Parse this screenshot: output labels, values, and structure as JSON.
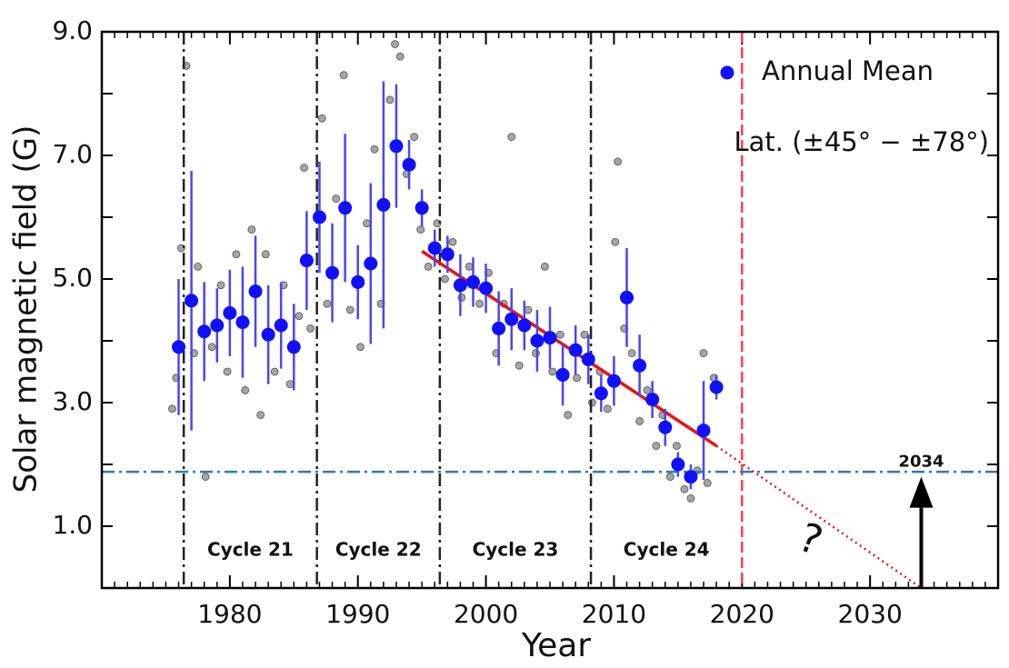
{
  "chart_data": {
    "type": "scatter",
    "xlabel": "Year",
    "ylabel": "Solar magnetic field (G)",
    "xlim": [
      1970,
      2040
    ],
    "ylim": [
      0,
      9
    ],
    "xticks": [
      1980,
      1990,
      2000,
      2010,
      2020,
      2030
    ],
    "yticks": [
      {
        "value": 1,
        "label": "1.0"
      },
      {
        "value": 3,
        "label": "3.0"
      },
      {
        "value": 5,
        "label": "5.0"
      },
      {
        "value": 7,
        "label": "7.0"
      },
      {
        "value": 9,
        "label": "9.0"
      }
    ],
    "yticks_minor": [
      2,
      4,
      6,
      8
    ],
    "xticks_minor_step": 1,
    "legend": "upper right",
    "legend_note": "Lat. (±45° − ±78°)",
    "series": [
      {
        "name": "Annual Mean",
        "color": "#1010ff",
        "error_color": "#4848f0",
        "x": [
          1976,
          1977,
          1978,
          1979,
          1980,
          1981,
          1982,
          1983,
          1984,
          1985,
          1986,
          1987,
          1988,
          1989,
          1990,
          1991,
          1992,
          1993,
          1994,
          1995,
          1996,
          1997,
          1998,
          1999,
          2000,
          2001,
          2002,
          2003,
          2004,
          2005,
          2006,
          2007,
          2008,
          2009,
          2010,
          2011,
          2012,
          2013,
          2014,
          2015,
          2016,
          2017,
          2018
        ],
        "values": [
          3.9,
          4.65,
          4.15,
          4.25,
          4.45,
          4.3,
          4.8,
          4.1,
          4.25,
          3.9,
          5.3,
          6.0,
          5.1,
          6.15,
          4.95,
          5.25,
          6.2,
          7.15,
          6.85,
          6.15,
          5.5,
          5.4,
          4.9,
          4.95,
          4.85,
          4.2,
          4.35,
          4.25,
          4.0,
          4.05,
          3.45,
          3.85,
          3.7,
          3.15,
          3.35,
          4.7,
          3.6,
          3.05,
          2.6,
          2.0,
          1.8,
          2.55,
          3.25
        ],
        "errors": [
          1.1,
          2.1,
          0.8,
          0.6,
          0.7,
          0.9,
          0.9,
          0.8,
          0.7,
          0.7,
          0.8,
          0.9,
          0.8,
          1.2,
          0.6,
          1.3,
          2.0,
          1.0,
          0.4,
          0.3,
          0.3,
          0.3,
          0.5,
          0.4,
          0.4,
          0.6,
          0.5,
          0.4,
          0.5,
          0.5,
          0.5,
          0.4,
          0.4,
          0.3,
          0.4,
          0.8,
          0.5,
          0.3,
          0.3,
          0.2,
          0.2,
          0.8,
          0.2
        ]
      }
    ],
    "samples": {
      "color": "#000000",
      "x": [
        1975.5,
        1975.8,
        1976.2,
        1976.6,
        1977.2,
        1977.5,
        1978.1,
        1978.6,
        1979.3,
        1979.8,
        1980.5,
        1981.2,
        1981.7,
        1982.4,
        1982.8,
        1983.5,
        1984.2,
        1984.7,
        1985.4,
        1985.8,
        1986.3,
        1987.2,
        1987.6,
        1988.3,
        1988.9,
        1989.4,
        1990.2,
        1990.7,
        1991.3,
        1991.8,
        1992.5,
        1992.9,
        1993.3,
        1993.8,
        1994.4,
        1994.9,
        1995.5,
        1996.2,
        1996.8,
        1997.4,
        1998.1,
        1998.7,
        1999.5,
        2000.2,
        2000.8,
        2001.4,
        2002.0,
        2002.6,
        2003.3,
        2003.9,
        2004.6,
        2005.2,
        2005.8,
        2006.4,
        2007.1,
        2007.7,
        2008.3,
        2008.9,
        2009.5,
        2010.1,
        2010.3,
        2010.8,
        2011.4,
        2012.0,
        2012.6,
        2013.3,
        2013.8,
        2014.4,
        2014.9,
        2015.5,
        2016.0,
        2016.5,
        2017.0,
        2017.3,
        2017.8
      ],
      "values": [
        2.9,
        3.4,
        5.5,
        8.45,
        3.8,
        5.2,
        1.8,
        3.9,
        4.9,
        3.5,
        5.4,
        3.2,
        5.8,
        2.8,
        5.4,
        3.5,
        4.9,
        3.3,
        4.4,
        6.8,
        4.2,
        7.6,
        4.6,
        6.3,
        8.3,
        4.5,
        3.9,
        5.9,
        7.1,
        4.6,
        7.9,
        8.8,
        8.6,
        6.7,
        7.3,
        5.8,
        5.2,
        5.9,
        5.0,
        5.6,
        4.7,
        5.2,
        4.6,
        5.1,
        3.8,
        4.6,
        7.3,
        3.6,
        4.5,
        3.8,
        5.2,
        3.5,
        4.1,
        2.8,
        3.4,
        4.1,
        3.0,
        3.5,
        2.9,
        5.6,
        6.9,
        4.2,
        3.8,
        2.7,
        3.2,
        2.3,
        2.8,
        1.8,
        2.3,
        1.6,
        1.45,
        1.9,
        3.8,
        1.7,
        3.4
      ]
    },
    "cycle_boundaries": [
      1976.4,
      1986.8,
      1996.4,
      2008.2,
      2020
    ],
    "cycle_labels": [
      "Cycle 21",
      "Cycle 22",
      "Cycle 23",
      "Cycle 24"
    ],
    "threshold_field": 1.88,
    "fit": {
      "color": "#ee1111",
      "x": [
        1995,
        2018
      ],
      "values": [
        5.45,
        2.3
      ]
    },
    "extrapolation": {
      "x": [
        2018,
        2034
      ],
      "values": [
        2.3,
        0
      ]
    },
    "question_mark": "?",
    "arrow_label": "2034"
  }
}
